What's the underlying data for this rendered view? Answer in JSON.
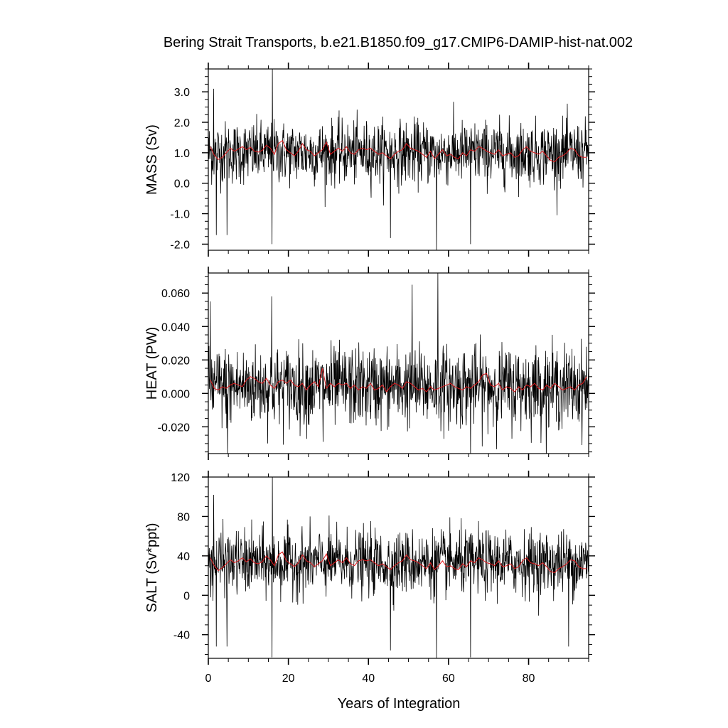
{
  "title": "Bering Strait Transports, b.e21.B1850.f09_g17.CMIP6-DAMIP-hist-nat.002",
  "colors": {
    "monthly": "#000000",
    "annual": "#e0191c",
    "axis": "#000000"
  },
  "chart_data": [
    {
      "type": "line",
      "panel": "mass",
      "ylabel": "MASS (Sv)",
      "xlim": [
        0,
        95
      ],
      "ylim": [
        -2.2,
        3.75
      ],
      "yticks": [
        -2.0,
        -1.0,
        0.0,
        1.0,
        2.0,
        3.0
      ],
      "ytick_labels": [
        "-2.0",
        "-1.0",
        "0.0",
        "1.0",
        "2.0",
        "3.0"
      ],
      "show_xtick_labels": false,
      "series": [
        {
          "role": "monthly",
          "mean": 1.0,
          "spread": 0.6,
          "spikes": [
            [
              1.3,
              3.1
            ],
            [
              2.0,
              -1.7
            ],
            [
              4.7,
              -1.7
            ],
            [
              16.0,
              3.75
            ],
            [
              15.9,
              -2.0
            ],
            [
              57.0,
              -2.2
            ],
            [
              65.5,
              -2.0
            ],
            [
              45.5,
              -1.8
            ]
          ]
        },
        {
          "role": "annual",
          "values": [
            1.2,
            0.92,
            0.78,
            0.85,
            1.0,
            1.15,
            1.05,
            1.12,
            1.2,
            1.1,
            1.18,
            1.05,
            1.02,
            1.08,
            1.25,
            1.15,
            0.95,
            1.3,
            1.4,
            1.1,
            1.0,
            0.9,
            1.05,
            1.3,
            1.1,
            1.05,
            0.9,
            1.0,
            1.1,
            1.35,
            0.95,
            1.05,
            1.15,
            1.05,
            1.2,
            1.0,
            0.95,
            1.1,
            1.15,
            1.1,
            1.15,
            1.05,
            0.95,
            1.0,
            0.9,
            0.8,
            0.95,
            1.05,
            1.1,
            1.3,
            1.15,
            1.1,
            1.05,
            0.95,
            0.85,
            1.05,
            0.8,
            0.95,
            1.1,
            0.9,
            0.95,
            0.85,
            0.8,
            1.0,
            0.9,
            1.1,
            1.05,
            1.2,
            1.15,
            1.05,
            1.0,
            0.95,
            1.1,
            0.9,
            0.95,
            1.0,
            0.85,
            0.9,
            1.1,
            1.2,
            1.05,
            1.0,
            0.95,
            1.05,
            0.9,
            0.75,
            0.7,
            0.85,
            0.9,
            1.0,
            1.15,
            1.1,
            0.9,
            0.85,
            0.85
          ]
        }
      ]
    },
    {
      "type": "line",
      "panel": "heat",
      "ylabel": "HEAT (PW)",
      "xlim": [
        0,
        95
      ],
      "ylim": [
        -0.036,
        0.072
      ],
      "yticks": [
        -0.02,
        0.0,
        0.02,
        0.04,
        0.06
      ],
      "ytick_labels": [
        "-0.020",
        "0.000",
        "0.020",
        "0.040",
        "0.060"
      ],
      "show_xtick_labels": false,
      "series": [
        {
          "role": "monthly",
          "mean": 0.004,
          "spread": 0.014,
          "spikes": [
            [
              0.5,
              0.055
            ],
            [
              4.8,
              -0.036
            ],
            [
              28.7,
              -0.029
            ],
            [
              50.9,
              0.065
            ],
            [
              57.3,
              0.072
            ],
            [
              65.5,
              -0.036
            ],
            [
              15.8,
              0.058
            ]
          ]
        },
        {
          "role": "annual",
          "values": [
            0.008,
            0.003,
            0.002,
            0.004,
            0.003,
            0.005,
            0.006,
            0.005,
            0.004,
            0.008,
            0.01,
            0.009,
            0.007,
            0.006,
            0.009,
            0.005,
            0.003,
            0.007,
            0.008,
            0.006,
            0.008,
            0.005,
            0.004,
            0.006,
            0.002,
            0.005,
            0.007,
            0.004,
            0.015,
            0.003,
            0.006,
            0.004,
            0.006,
            0.005,
            0.006,
            0.003,
            0.005,
            0.002,
            0.004,
            0.003,
            0.006,
            0.002,
            0.003,
            0.005,
            0.001,
            0.004,
            0.006,
            0.005,
            0.003,
            0.007,
            0.006,
            0.004,
            0.002,
            0.003,
            0.001,
            0.004,
            0.002,
            0.003,
            0.004,
            0.005,
            0.006,
            0.004,
            0.003,
            0.002,
            0.004,
            0.003,
            0.005,
            0.007,
            0.011,
            0.012,
            0.005,
            0.004,
            0.006,
            0.002,
            0.004,
            0.003,
            0.001,
            0.004,
            0.002,
            0.005,
            0.004,
            0.006,
            0.003,
            0.002,
            0.005,
            0.003,
            0.006,
            0.004,
            0.002,
            0.003,
            0.004,
            0.002,
            0.005,
            0.006,
            0.01
          ]
        }
      ]
    },
    {
      "type": "line",
      "panel": "salt",
      "ylabel": "SALT (Sv*ppt)",
      "xlim": [
        0,
        95
      ],
      "xlabel": "Years of Integration",
      "xticks": [
        0,
        20,
        40,
        60,
        80
      ],
      "xtick_labels": [
        "0",
        "20",
        "40",
        "60",
        "80"
      ],
      "ylim": [
        -64,
        120
      ],
      "yticks": [
        -40,
        0,
        40,
        80,
        120
      ],
      "ytick_labels": [
        "-40",
        "0",
        "40",
        "80",
        "120"
      ],
      "show_xtick_labels": true,
      "series": [
        {
          "role": "monthly",
          "mean": 33,
          "spread": 19,
          "spikes": [
            [
              1.3,
              102
            ],
            [
              2.0,
              -52
            ],
            [
              4.7,
              -52
            ],
            [
              16.0,
              120
            ],
            [
              15.9,
              -63
            ],
            [
              57.0,
              -64
            ],
            [
              65.5,
              -63
            ],
            [
              45.5,
              -56
            ],
            [
              90.0,
              -52
            ]
          ]
        },
        {
          "role": "annual",
          "values": [
            38,
            30,
            25,
            28,
            32,
            36,
            33,
            35,
            38,
            34,
            37,
            33,
            32,
            34,
            40,
            36,
            30,
            41,
            44,
            35,
            32,
            29,
            33,
            41,
            35,
            33,
            29,
            32,
            35,
            42,
            30,
            33,
            36,
            33,
            38,
            32,
            30,
            35,
            36,
            35,
            36,
            33,
            30,
            32,
            29,
            26,
            30,
            33,
            35,
            41,
            36,
            35,
            33,
            30,
            27,
            33,
            26,
            30,
            35,
            29,
            30,
            27,
            26,
            32,
            29,
            35,
            33,
            38,
            36,
            33,
            32,
            30,
            35,
            29,
            30,
            32,
            27,
            29,
            35,
            38,
            33,
            32,
            30,
            33,
            29,
            24,
            23,
            27,
            29,
            32,
            36,
            35,
            29,
            27,
            27
          ]
        }
      ]
    }
  ]
}
